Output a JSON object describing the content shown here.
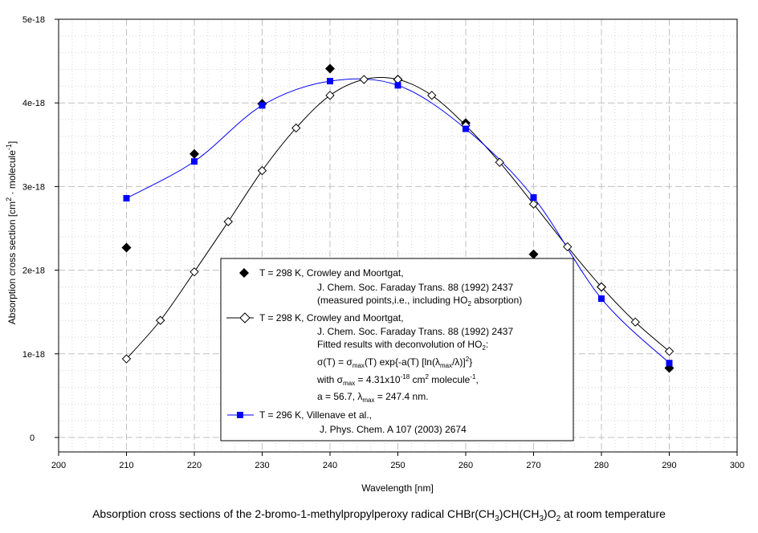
{
  "chart_data": {
    "type": "line",
    "title": "Absorption cross sections of the 2-bromo-1-methylpropylperoxy radical CHBr(CH3)CH(CH3)O2 at room temperature",
    "title_parts": {
      "a": "Absorption cross sections of the 2-bromo-1-methylpropylperoxy radical CHBr(CH",
      "s1": "3",
      "b": ")CH(CH",
      "s2": "3",
      "c": ")O",
      "s3": "2",
      "d": " at room temperature"
    },
    "xlabel": "Wavelength [nm]",
    "ylabel": "Absorption cross section [cm",
    "ylabel_parts": {
      "a": "Absorption cross section [cm",
      "sup1": "2",
      "b": " · molecule",
      "sup2": "-1",
      "c": "]"
    },
    "xlim": [
      200,
      300
    ],
    "ylim": [
      0,
      5e-18
    ],
    "xticks": [
      "200",
      "210",
      "220",
      "230",
      "240",
      "250",
      "260",
      "270",
      "280",
      "290",
      "300"
    ],
    "yticks": [
      "0",
      "1e-18",
      "2e-18",
      "3e-18",
      "4e-18",
      "5e-18"
    ],
    "grid": true,
    "legend_placement": "bottom-center",
    "series": [
      {
        "name": "T = 298 K, Crowley and Moortgat (measured points)",
        "marker": "filled-diamond",
        "line": false,
        "color": "#000000",
        "x": [
          210,
          220,
          230,
          240,
          250,
          260,
          270,
          280,
          290
        ],
        "y": [
          2.27e-18,
          3.39e-18,
          3.99e-18,
          4.41e-18,
          4.28e-18,
          3.76e-18,
          2.19e-18,
          1.8e-18,
          8.3e-19
        ]
      },
      {
        "name": "T = 298 K, Crowley and Moortgat (fitted)",
        "marker": "open-diamond",
        "line": true,
        "color": "#000000",
        "x": [
          210,
          215,
          220,
          225,
          230,
          235,
          240,
          245,
          250,
          255,
          260,
          265,
          270,
          275,
          280,
          285,
          290
        ],
        "y": [
          9.4e-19,
          1.4e-18,
          1.98e-18,
          2.58e-18,
          3.19e-18,
          3.7e-18,
          4.09e-18,
          4.28e-18,
          4.28e-18,
          4.09e-18,
          3.73e-18,
          3.29e-18,
          2.79e-18,
          2.28e-18,
          1.8e-18,
          1.38e-18,
          1.03e-18
        ]
      },
      {
        "name": "T = 296 K, Villenave et al.",
        "marker": "filled-square",
        "line": true,
        "color": "#0000FF",
        "x": [
          210,
          220,
          230,
          240,
          250,
          260,
          270,
          280,
          290
        ],
        "y": [
          2.86e-18,
          3.3e-18,
          3.97e-18,
          4.26e-18,
          4.21e-18,
          3.69e-18,
          2.87e-18,
          1.66e-18,
          8.9e-19
        ]
      }
    ],
    "legend": [
      {
        "lines": [
          {
            "t": "T = 298 K, Crowley and Moortgat,"
          },
          {
            "t": "J. Chem. Soc. Faraday Trans. 88 (1992) 2437"
          },
          {
            "t": "(measured points,i.e., including HO",
            "sub": "2",
            "t2": " absorption)"
          }
        ]
      },
      {
        "lines": [
          {
            "t": "T = 298 K, Crowley and Moortgat,"
          },
          {
            "t": "J. Chem. Soc. Faraday Trans. 88 (1992) 2437"
          },
          {
            "t": "Fitted results with deconvolution of HO",
            "sub": "2",
            "t2": ":"
          },
          {
            "t": "σ(T) = σ",
            "sub": "max",
            "t2": "(T) exp{-a(T) [ln(λ",
            "sub2": "max",
            "t3": "/λ)]",
            "sup": "2",
            "t4": "}"
          },
          {
            "t": "with σ",
            "sub": "max",
            "t2": " = 4.31x10",
            "sup": "-18",
            "t3": " cm",
            "sup2": "2",
            "t4": " molecule",
            "sup3": "-1",
            "t5": ","
          },
          {
            "t": "a = 56.7, λ",
            "sub": "max",
            "t2": " = 247.4 nm."
          }
        ]
      },
      {
        "lines": [
          {
            "t": "T = 296 K, Villenave et al.,"
          },
          {
            "t": "J. Phys. Chem. A 107 (2003) 2674"
          }
        ]
      }
    ]
  }
}
